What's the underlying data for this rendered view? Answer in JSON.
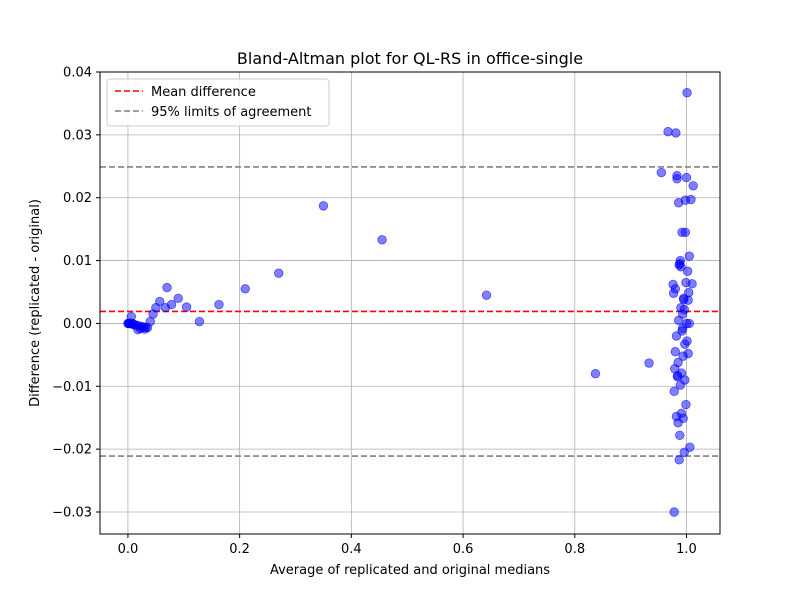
{
  "chart_data": {
    "type": "scatter",
    "title": "Bland-Altman plot for QL-RS in office-single",
    "xlabel": "Average of replicated and original medians",
    "ylabel": "Difference (replicated - original)",
    "xlim": [
      -0.05,
      1.06
    ],
    "ylim": [
      -0.0335,
      0.04
    ],
    "xticks": [
      0.0,
      0.2,
      0.4,
      0.6,
      0.8,
      1.0
    ],
    "xtick_labels": [
      "0.0",
      "0.2",
      "0.4",
      "0.6",
      "0.8",
      "1.0"
    ],
    "yticks": [
      -0.03,
      -0.02,
      -0.01,
      0.0,
      0.01,
      0.02,
      0.03,
      0.04
    ],
    "ytick_labels": [
      "−0.03",
      "−0.02",
      "−0.01",
      "0.00",
      "0.01",
      "0.02",
      "0.03",
      "0.04"
    ],
    "grid": true,
    "legend_position": "top-left",
    "mean_difference": 0.0019,
    "loa_upper": 0.0249,
    "loa_lower": -0.0211,
    "legend": [
      {
        "label": "Mean difference",
        "color": "#ff0000",
        "style": "dashed"
      },
      {
        "label": "95% limits of agreement",
        "color": "#808080",
        "style": "dashed"
      }
    ],
    "point_color": "#0000ff",
    "point_opacity": 0.5,
    "x": [
      0.0,
      0.001,
      0.002,
      0.003,
      0.004,
      0.005,
      0.006,
      0.008,
      0.01,
      0.012,
      0.015,
      0.018,
      0.02,
      0.022,
      0.025,
      0.028,
      0.03,
      0.032,
      0.035,
      0.006,
      0.04,
      0.045,
      0.05,
      0.057,
      0.067,
      0.07,
      0.078,
      0.09,
      0.105,
      0.128,
      0.163,
      0.21,
      0.27,
      0.35,
      0.455,
      0.642,
      0.837,
      0.933,
      0.955,
      0.967,
      0.976,
      0.977,
      0.978,
      0.979,
      0.98,
      0.981,
      0.982,
      0.983,
      0.984,
      0.985,
      0.986,
      0.987,
      0.988,
      0.989,
      0.99,
      0.991,
      0.992,
      0.993,
      0.994,
      0.995,
      0.996,
      0.997,
      0.998,
      0.999,
      1.0,
      1.001,
      1.002,
      1.003,
      1.004,
      1.005,
      1.006,
      1.008,
      1.01,
      1.012,
      0.983,
      0.99,
      0.993,
      0.986,
      0.997,
      1.001,
      0.978,
      0.982,
      0.989,
      0.995,
      1.003,
      0.994,
      0.999,
      0.987,
      0.98,
      0.996,
      0.992,
      0.985,
      1.0,
      0.998,
      0.991,
      0.984,
      1.005,
      0.988
    ],
    "y": [
      0.0,
      0.0,
      0.0,
      0.0,
      0.0,
      0.0,
      0.0,
      0.0,
      -0.0002,
      -0.0002,
      -0.0003,
      -0.001,
      -0.0004,
      -0.0008,
      -0.0005,
      -0.0006,
      -0.0009,
      -0.0006,
      -0.0007,
      0.0011,
      0.0003,
      0.0015,
      0.0025,
      0.0035,
      0.0025,
      0.0057,
      0.003,
      0.004,
      0.0026,
      0.0003,
      0.003,
      0.0055,
      0.008,
      0.0187,
      0.0133,
      0.0045,
      -0.008,
      -0.0063,
      0.024,
      0.0305,
      0.0062,
      0.0048,
      -0.0108,
      -0.0072,
      -0.0045,
      0.0303,
      -0.0148,
      0.0235,
      -0.0083,
      -0.0158,
      0.0192,
      0.0093,
      -0.0178,
      0.01,
      0.009,
      -0.0143,
      0.0145,
      -0.0008,
      -0.0052,
      0.0038,
      0.0022,
      -0.0033,
      0.0196,
      0.0065,
      0.0232,
      -0.0028,
      0.0083,
      -0.0048,
      0.0049,
      0.0107,
      -0.0197,
      0.0197,
      0.0063,
      0.0219,
      0.023,
      0.0025,
      0.0015,
      0.0005,
      -0.009,
      0.0367,
      -0.03,
      -0.002,
      -0.0098,
      0.004,
      0.0037,
      -0.0151,
      -0.0129,
      -0.0217,
      0.0055,
      -0.0205,
      -0.0012,
      -0.0062,
      0.0,
      0.0145,
      -0.0079,
      -0.0085,
      0.0,
      0.0095
    ]
  }
}
